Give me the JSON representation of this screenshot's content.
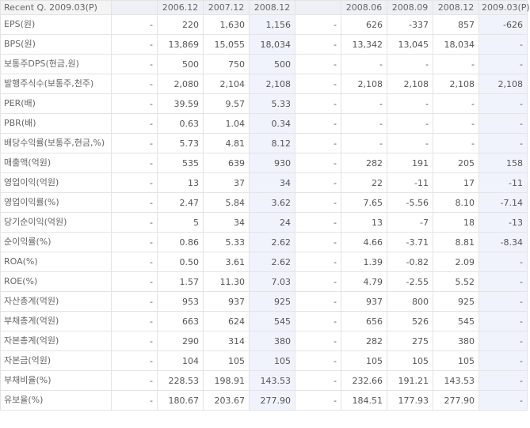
{
  "corner_label": "Recent Q. 2009.03(P)",
  "columns": [
    "",
    "2006.12",
    "2007.12",
    "2008.12",
    "",
    "2008.06",
    "2008.09",
    "2008.12",
    "2009.03(P)"
  ],
  "rows": [
    {
      "label": "EPS(원)",
      "values": [
        "-",
        "220",
        "1,630",
        "1,156",
        "-",
        "626",
        "-337",
        "857",
        "-626"
      ]
    },
    {
      "label": "BPS(원)",
      "values": [
        "-",
        "13,869",
        "15,055",
        "18,034",
        "-",
        "13,342",
        "13,045",
        "18,034",
        "-"
      ]
    },
    {
      "label": "보통주DPS(현금,원)",
      "values": [
        "-",
        "500",
        "750",
        "500",
        "-",
        "-",
        "-",
        "-",
        "-"
      ]
    },
    {
      "label": "발행주식수(보통주,천주)",
      "values": [
        "-",
        "2,080",
        "2,104",
        "2,108",
        "-",
        "2,108",
        "2,108",
        "2,108",
        "2,108"
      ]
    },
    {
      "label": "PER(배)",
      "values": [
        "-",
        "39.59",
        "9.57",
        "5.33",
        "-",
        "-",
        "-",
        "-",
        "-"
      ]
    },
    {
      "label": "PBR(배)",
      "values": [
        "-",
        "0.63",
        "1.04",
        "0.34",
        "-",
        "-",
        "-",
        "-",
        "-"
      ]
    },
    {
      "label": "배당수익률(보통주,현금,%)",
      "values": [
        "-",
        "5.73",
        "4.81",
        "8.12",
        "-",
        "-",
        "-",
        "-",
        "-"
      ]
    },
    {
      "label": "매출액(억원)",
      "values": [
        "-",
        "535",
        "639",
        "930",
        "-",
        "282",
        "191",
        "205",
        "158"
      ]
    },
    {
      "label": "영업이익(억원)",
      "values": [
        "-",
        "13",
        "37",
        "34",
        "-",
        "22",
        "-11",
        "17",
        "-11"
      ]
    },
    {
      "label": "영업이익률(%)",
      "values": [
        "-",
        "2.47",
        "5.84",
        "3.62",
        "-",
        "7.65",
        "-5.56",
        "8.10",
        "-7.14"
      ]
    },
    {
      "label": "당기순이익(억원)",
      "values": [
        "-",
        "5",
        "34",
        "24",
        "-",
        "13",
        "-7",
        "18",
        "-13"
      ]
    },
    {
      "label": "순이익률(%)",
      "values": [
        "-",
        "0.86",
        "5.33",
        "2.62",
        "-",
        "4.66",
        "-3.71",
        "8.81",
        "-8.34"
      ]
    },
    {
      "label": "ROA(%)",
      "values": [
        "-",
        "0.50",
        "3.61",
        "2.62",
        "-",
        "1.39",
        "-0.82",
        "2.09",
        "-"
      ]
    },
    {
      "label": "ROE(%)",
      "values": [
        "-",
        "1.57",
        "11.30",
        "7.03",
        "-",
        "4.79",
        "-2.55",
        "5.52",
        "-"
      ]
    },
    {
      "label": "자산총계(억원)",
      "values": [
        "-",
        "953",
        "937",
        "925",
        "-",
        "937",
        "800",
        "925",
        "-"
      ]
    },
    {
      "label": "부채총계(억원)",
      "values": [
        "-",
        "663",
        "624",
        "545",
        "-",
        "656",
        "526",
        "545",
        "-"
      ]
    },
    {
      "label": "자본총계(억원)",
      "values": [
        "-",
        "290",
        "314",
        "380",
        "-",
        "282",
        "275",
        "380",
        "-"
      ]
    },
    {
      "label": "자본금(억원)",
      "values": [
        "-",
        "104",
        "105",
        "105",
        "-",
        "105",
        "105",
        "105",
        "-"
      ]
    },
    {
      "label": "부채비율(%)",
      "values": [
        "-",
        "228.53",
        "198.91",
        "143.53",
        "-",
        "232.66",
        "191.21",
        "143.53",
        "-"
      ]
    },
    {
      "label": "유보율(%)",
      "values": [
        "-",
        "180.67",
        "203.67",
        "277.90",
        "-",
        "184.51",
        "177.93",
        "277.90",
        "-"
      ]
    }
  ],
  "colors": {
    "header_bg": "#eef0f5",
    "highlight_bg": "#f0f3fb",
    "border": "#e4e4e4",
    "text": "#555555"
  }
}
